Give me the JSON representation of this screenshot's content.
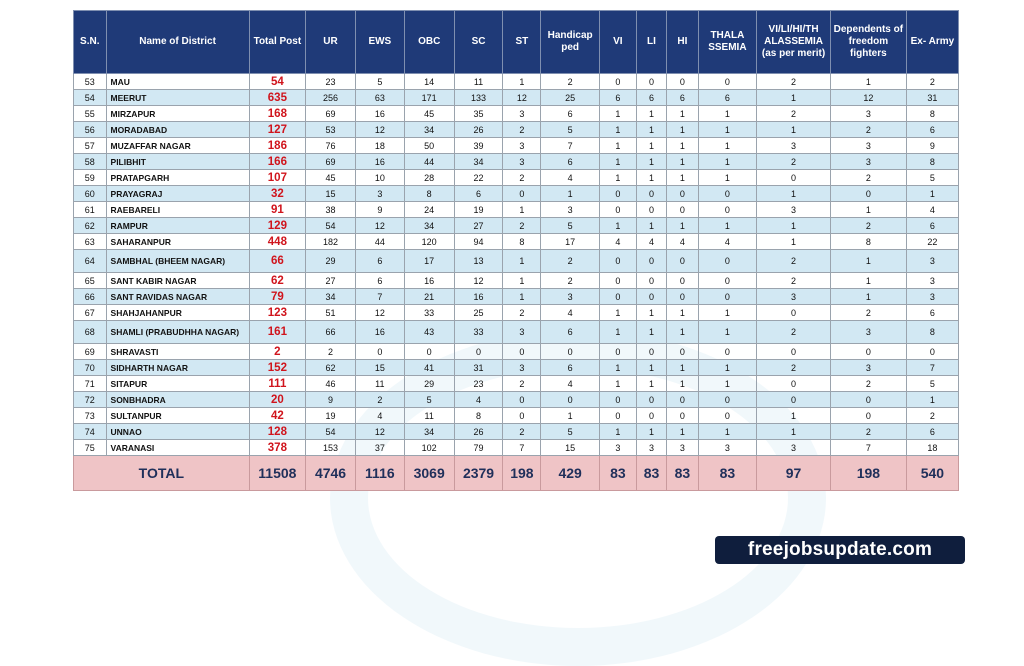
{
  "headers": [
    "S.N.",
    "Name of District",
    "Total Post",
    "UR",
    "EWS",
    "OBC",
    "SC",
    "ST",
    "Handicap ped",
    "VI",
    "LI",
    "HI",
    "THALA SSEMIA",
    "VI/LI/HI/TH ALASSEMIA (as per merit)",
    "Dependents of freedom fighters",
    "Ex- Army"
  ],
  "rows": [
    [
      "53",
      "MAU",
      "54",
      "23",
      "5",
      "14",
      "11",
      "1",
      "2",
      "0",
      "0",
      "0",
      "0",
      "2",
      "1",
      "2"
    ],
    [
      "54",
      "MEERUT",
      "635",
      "256",
      "63",
      "171",
      "133",
      "12",
      "25",
      "6",
      "6",
      "6",
      "6",
      "1",
      "12",
      "31"
    ],
    [
      "55",
      "MIRZAPUR",
      "168",
      "69",
      "16",
      "45",
      "35",
      "3",
      "6",
      "1",
      "1",
      "1",
      "1",
      "2",
      "3",
      "8"
    ],
    [
      "56",
      "MORADABAD",
      "127",
      "53",
      "12",
      "34",
      "26",
      "2",
      "5",
      "1",
      "1",
      "1",
      "1",
      "1",
      "2",
      "6"
    ],
    [
      "57",
      "MUZAFFAR NAGAR",
      "186",
      "76",
      "18",
      "50",
      "39",
      "3",
      "7",
      "1",
      "1",
      "1",
      "1",
      "3",
      "3",
      "9"
    ],
    [
      "58",
      "PILIBHIT",
      "166",
      "69",
      "16",
      "44",
      "34",
      "3",
      "6",
      "1",
      "1",
      "1",
      "1",
      "2",
      "3",
      "8"
    ],
    [
      "59",
      "PRATAPGARH",
      "107",
      "45",
      "10",
      "28",
      "22",
      "2",
      "4",
      "1",
      "1",
      "1",
      "1",
      "0",
      "2",
      "5"
    ],
    [
      "60",
      "PRAYAGRAJ",
      "32",
      "15",
      "3",
      "8",
      "6",
      "0",
      "1",
      "0",
      "0",
      "0",
      "0",
      "1",
      "0",
      "1"
    ],
    [
      "61",
      "RAEBARELI",
      "91",
      "38",
      "9",
      "24",
      "19",
      "1",
      "3",
      "0",
      "0",
      "0",
      "0",
      "3",
      "1",
      "4"
    ],
    [
      "62",
      "RAMPUR",
      "129",
      "54",
      "12",
      "34",
      "27",
      "2",
      "5",
      "1",
      "1",
      "1",
      "1",
      "1",
      "2",
      "6"
    ],
    [
      "63",
      "SAHARANPUR",
      "448",
      "182",
      "44",
      "120",
      "94",
      "8",
      "17",
      "4",
      "4",
      "4",
      "4",
      "1",
      "8",
      "22"
    ],
    [
      "64",
      "SAMBHAL (BHEEM NAGAR)",
      "66",
      "29",
      "6",
      "17",
      "13",
      "1",
      "2",
      "0",
      "0",
      "0",
      "0",
      "2",
      "1",
      "3"
    ],
    [
      "65",
      "SANT KABIR NAGAR",
      "62",
      "27",
      "6",
      "16",
      "12",
      "1",
      "2",
      "0",
      "0",
      "0",
      "0",
      "2",
      "1",
      "3"
    ],
    [
      "66",
      "SANT RAVIDAS NAGAR",
      "79",
      "34",
      "7",
      "21",
      "16",
      "1",
      "3",
      "0",
      "0",
      "0",
      "0",
      "3",
      "1",
      "3"
    ],
    [
      "67",
      "SHAHJAHANPUR",
      "123",
      "51",
      "12",
      "33",
      "25",
      "2",
      "4",
      "1",
      "1",
      "1",
      "1",
      "0",
      "2",
      "6"
    ],
    [
      "68",
      "SHAMLI (PRABUDHHA NAGAR)",
      "161",
      "66",
      "16",
      "43",
      "33",
      "3",
      "6",
      "1",
      "1",
      "1",
      "1",
      "2",
      "3",
      "8"
    ],
    [
      "69",
      "SHRAVASTI",
      "2",
      "2",
      "0",
      "0",
      "0",
      "0",
      "0",
      "0",
      "0",
      "0",
      "0",
      "0",
      "0",
      "0"
    ],
    [
      "70",
      "SIDHARTH NAGAR",
      "152",
      "62",
      "15",
      "41",
      "31",
      "3",
      "6",
      "1",
      "1",
      "1",
      "1",
      "2",
      "3",
      "7"
    ],
    [
      "71",
      "SITAPUR",
      "111",
      "46",
      "11",
      "29",
      "23",
      "2",
      "4",
      "1",
      "1",
      "1",
      "1",
      "0",
      "2",
      "5"
    ],
    [
      "72",
      "SONBHADRA",
      "20",
      "9",
      "2",
      "5",
      "4",
      "0",
      "0",
      "0",
      "0",
      "0",
      "0",
      "0",
      "0",
      "1"
    ],
    [
      "73",
      "SULTANPUR",
      "42",
      "19",
      "4",
      "11",
      "8",
      "0",
      "1",
      "0",
      "0",
      "0",
      "0",
      "1",
      "0",
      "2"
    ],
    [
      "74",
      "UNNAO",
      "128",
      "54",
      "12",
      "34",
      "26",
      "2",
      "5",
      "1",
      "1",
      "1",
      "1",
      "1",
      "2",
      "6"
    ],
    [
      "75",
      "VARANASI",
      "378",
      "153",
      "37",
      "102",
      "79",
      "7",
      "15",
      "3",
      "3",
      "3",
      "3",
      "3",
      "7",
      "18"
    ]
  ],
  "total_row": [
    "TOTAL",
    "11508",
    "4746",
    "1116",
    "3069",
    "2379",
    "198",
    "429",
    "83",
    "83",
    "83",
    "83",
    "97",
    "198",
    "540"
  ],
  "brand": "freejobsupdate.com"
}
